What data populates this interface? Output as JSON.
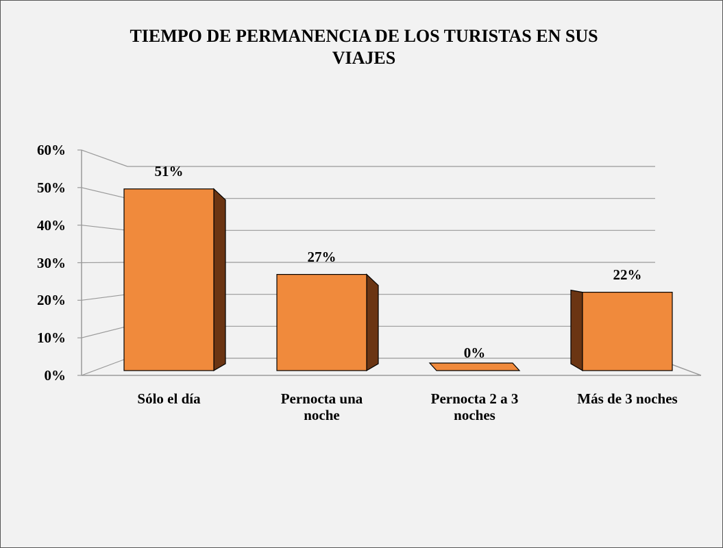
{
  "chart_data": {
    "type": "bar",
    "title": "TIEMPO DE PERMANENCIA DE LOS TURISTAS EN SUS VIAJES",
    "categories": [
      "Sólo el día",
      "Pernocta una noche",
      "Pernocta 2 a 3 noches",
      "Más de 3 noches"
    ],
    "values": [
      51,
      27,
      0,
      22
    ],
    "value_labels": [
      "51%",
      "27%",
      "0%",
      "22%"
    ],
    "color": "#f08a3c",
    "ylim": [
      0,
      60
    ],
    "yticks": [
      {
        "value": 0,
        "label": "0%"
      },
      {
        "value": 10,
        "label": "10%"
      },
      {
        "value": 20,
        "label": "20%"
      },
      {
        "value": 30,
        "label": "30%"
      },
      {
        "value": 40,
        "label": "40%"
      },
      {
        "value": 50,
        "label": "50%"
      },
      {
        "value": 60,
        "label": "60%"
      }
    ],
    "grid": true
  }
}
